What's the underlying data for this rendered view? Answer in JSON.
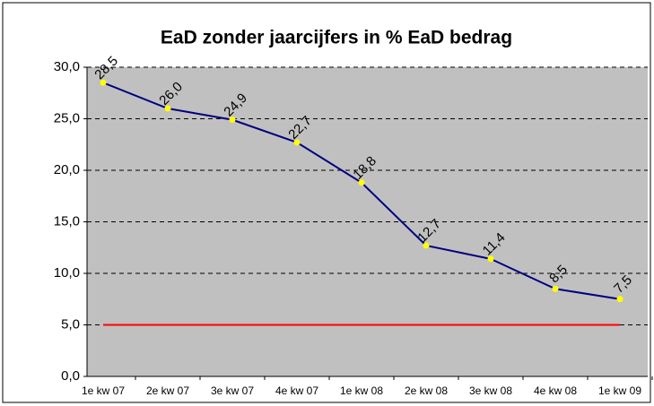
{
  "chart_data": {
    "type": "line",
    "title": "EaD zonder jaarcijfers in % EaD bedrag",
    "categories": [
      "1e kw  07",
      "2e kw  07",
      "3e kw  07",
      "4e kw  07",
      "1e kw  08",
      "2e kw  08",
      "3e kw  08",
      "4e kw  08",
      "1e kw  09"
    ],
    "series": [
      {
        "color": "#000080",
        "marker_color": "#ffff00",
        "values": [
          28.5,
          26.0,
          24.9,
          22.7,
          18.8,
          12.7,
          11.4,
          8.5,
          7.5
        ],
        "value_labels": [
          "28,5",
          "26,0",
          "24,9",
          "22,7",
          "18,8",
          "12,7",
          "11,4",
          "8,5",
          "7,5"
        ]
      },
      {
        "color": "#ff0000",
        "values": [
          5,
          5,
          5,
          5,
          5,
          5,
          5,
          5,
          5
        ]
      }
    ],
    "ylim": [
      0,
      30
    ],
    "yticks": [
      {
        "value": 0,
        "label": "0,0"
      },
      {
        "value": 5,
        "label": "5,0"
      },
      {
        "value": 10,
        "label": "10,0"
      },
      {
        "value": 15,
        "label": "15,0"
      },
      {
        "value": 20,
        "label": "20,0"
      },
      {
        "value": 25,
        "label": "25,0"
      },
      {
        "value": 30,
        "label": "30,0"
      }
    ],
    "grid": true
  }
}
